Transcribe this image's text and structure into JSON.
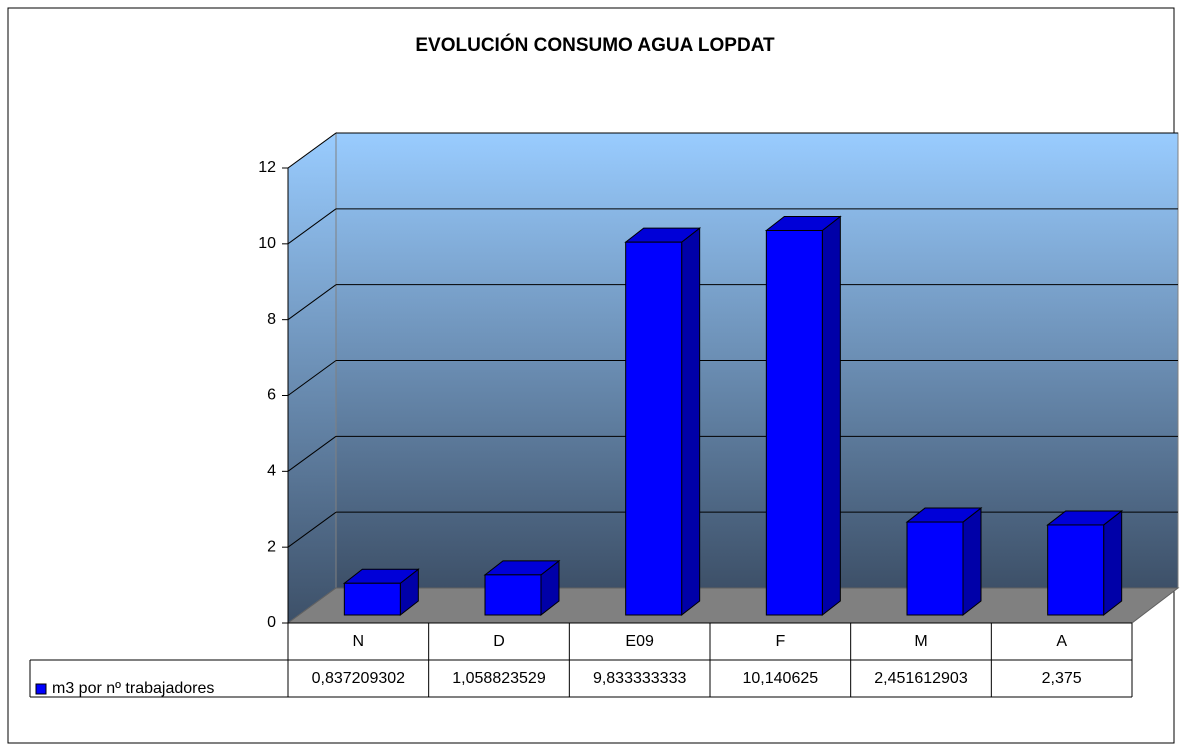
{
  "chart_data": {
    "type": "bar3d",
    "title": "EVOLUCIÓN CONSUMO AGUA LOPDAT",
    "categories": [
      "N",
      "D",
      "E09",
      "F",
      "M",
      "A"
    ],
    "series": [
      {
        "name": "m3 por nº trabajadores",
        "color": "#0000ff",
        "values": [
          0.837209302,
          1.058823529,
          9.833333333,
          10.140625,
          2.451612903,
          2.375
        ],
        "value_labels": [
          "0,837209302",
          "1,058823529",
          "9,833333333",
          "10,140625",
          "2,451612903",
          "2,375"
        ]
      }
    ],
    "ylim": [
      0,
      12
    ],
    "yticks": [
      0,
      2,
      4,
      6,
      8,
      10,
      12
    ],
    "grid": true
  }
}
